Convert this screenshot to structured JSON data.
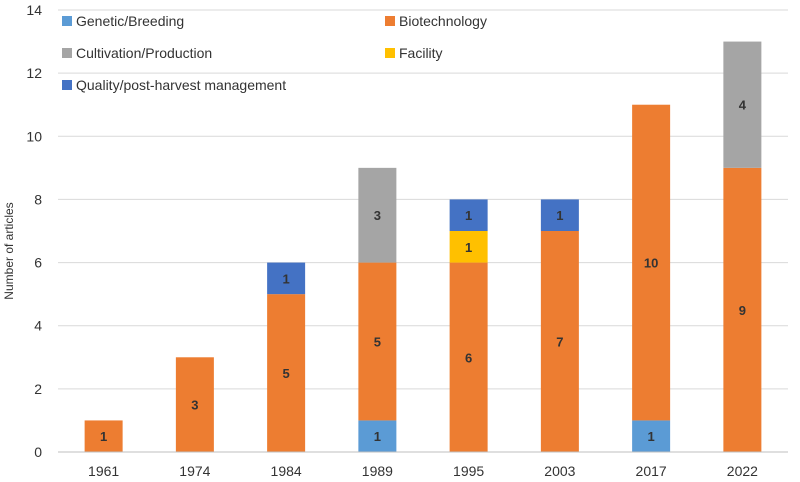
{
  "chart_data": {
    "type": "bar",
    "stacked": true,
    "title": "",
    "xlabel": "",
    "ylabel": "Number of articles",
    "ylim": [
      0,
      14
    ],
    "yticks": [
      0,
      2,
      4,
      6,
      8,
      10,
      12,
      14
    ],
    "grid": true,
    "legend_position": "top-left",
    "categories": [
      "1961",
      "1974",
      "1984",
      "1989",
      "1995",
      "2003",
      "2017",
      "2022"
    ],
    "series": [
      {
        "name": "Genetic/Breeding",
        "color": "#5B9BD5",
        "values": [
          0,
          0,
          0,
          1,
          0,
          0,
          1,
          0
        ]
      },
      {
        "name": "Biotechnology",
        "color": "#ED7D31",
        "values": [
          1,
          3,
          5,
          5,
          6,
          7,
          10,
          9
        ]
      },
      {
        "name": "Facility",
        "color": "#FFC000",
        "values": [
          0,
          0,
          0,
          0,
          1,
          0,
          0,
          0
        ]
      },
      {
        "name": "Quality/post-harvest management",
        "color": "#4472C4",
        "values": [
          0,
          0,
          1,
          0,
          1,
          1,
          0,
          0
        ]
      },
      {
        "name": "Cultivation/Production",
        "color": "#A5A5A5",
        "values": [
          0,
          0,
          0,
          3,
          0,
          0,
          0,
          4
        ]
      }
    ],
    "legend_order": [
      "Genetic/Breeding",
      "Biotechnology",
      "Cultivation/Production",
      "Facility",
      "Quality/post-harvest management"
    ]
  }
}
